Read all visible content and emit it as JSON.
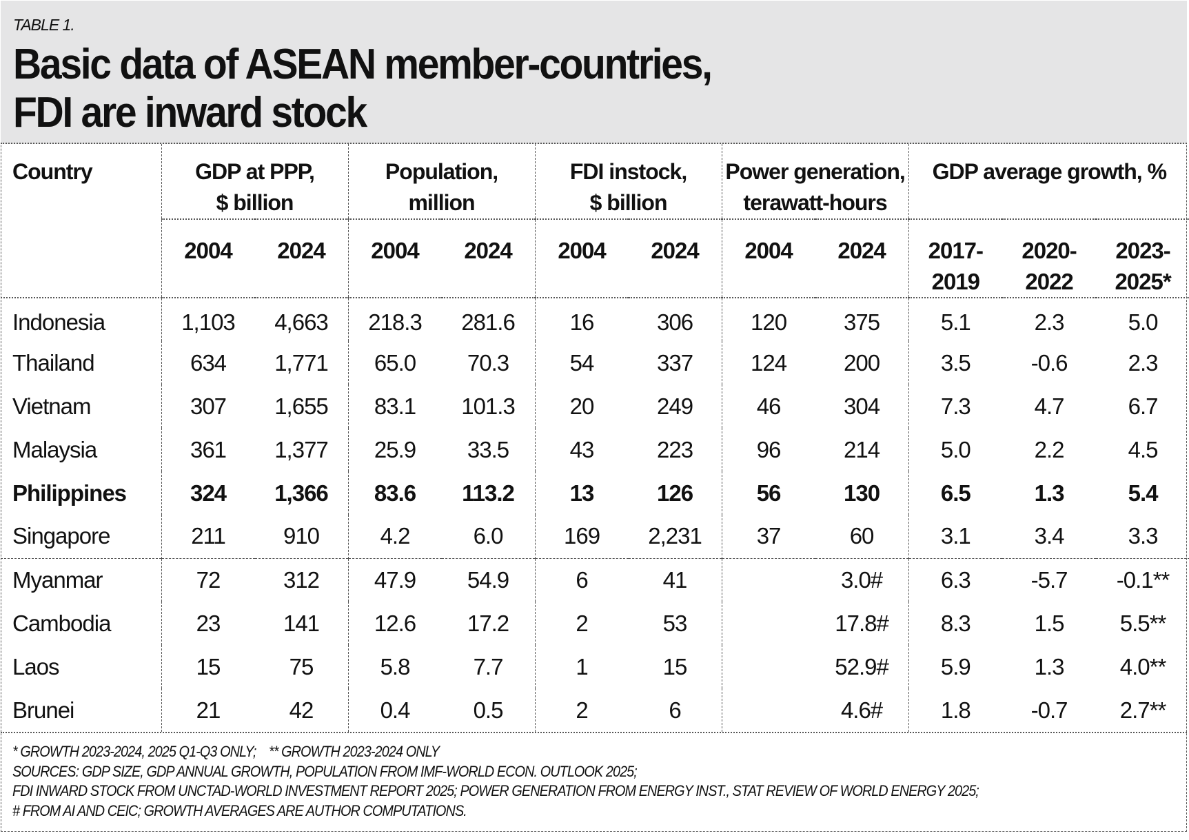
{
  "header": {
    "label": "TABLE 1.",
    "title_line1": "Basic data of ASEAN member-countries,",
    "title_line2": "FDI are inward stock"
  },
  "columns": {
    "country": "Country",
    "groups": [
      {
        "line1": "GDP at PPP,",
        "line2": "$ billion",
        "sub": [
          "2004",
          "2024"
        ]
      },
      {
        "line1": "Population,",
        "line2": "million",
        "sub": [
          "2004",
          "2024"
        ]
      },
      {
        "line1": "FDI instock,",
        "line2": "$ billion",
        "sub": [
          "2004",
          "2024"
        ]
      },
      {
        "line1": "Power generation,",
        "line2": "terawatt-hours",
        "sub": [
          "2004",
          "2024"
        ]
      },
      {
        "line1": "GDP average growth, %",
        "line2": "",
        "sub": [
          "2017-\n2019",
          "2020-\n2022",
          "2023-\n2025*"
        ]
      }
    ]
  },
  "rows": [
    {
      "country": "Indonesia",
      "bold": false,
      "values": [
        "1,103",
        "4,663",
        "218.3",
        "281.6",
        "16",
        "306",
        "120",
        "375",
        "5.1",
        "2.3",
        "5.0"
      ]
    },
    {
      "country": "Thailand",
      "bold": false,
      "values": [
        "634",
        "1,771",
        "65.0",
        "70.3",
        "54",
        "337",
        "124",
        "200",
        "3.5",
        "-0.6",
        "2.3"
      ]
    },
    {
      "country": "Vietnam",
      "bold": false,
      "values": [
        "307",
        "1,655",
        "83.1",
        "101.3",
        "20",
        "249",
        "46",
        "304",
        "7.3",
        "4.7",
        "6.7"
      ]
    },
    {
      "country": "Malaysia",
      "bold": false,
      "values": [
        "361",
        "1,377",
        "25.9",
        "33.5",
        "43",
        "223",
        "96",
        "214",
        "5.0",
        "2.2",
        "4.5"
      ]
    },
    {
      "country": "Philippines",
      "bold": true,
      "values": [
        "324",
        "1,366",
        "83.6",
        "113.2",
        "13",
        "126",
        "56",
        "130",
        "6.5",
        "1.3",
        "5.4"
      ]
    },
    {
      "country": "Singapore",
      "bold": false,
      "values": [
        "211",
        "910",
        "4.2",
        "6.0",
        "169",
        "2,231",
        "37",
        "60",
        "3.1",
        "3.4",
        "3.3"
      ]
    },
    {
      "country": "Myanmar",
      "bold": false,
      "divider": true,
      "values": [
        "72",
        "312",
        "47.9",
        "54.9",
        "6",
        "41",
        "",
        "3.0#",
        "6.3",
        "-5.7",
        "-0.1**"
      ]
    },
    {
      "country": "Cambodia",
      "bold": false,
      "values": [
        "23",
        "141",
        "12.6",
        "17.2",
        "2",
        "53",
        "",
        "17.8#",
        "8.3",
        "1.5",
        "5.5**"
      ]
    },
    {
      "country": "Laos",
      "bold": false,
      "values": [
        "15",
        "75",
        "5.8",
        "7.7",
        "1",
        "15",
        "",
        "52.9#",
        "5.9",
        "1.3",
        "4.0**"
      ]
    },
    {
      "country": "Brunei",
      "bold": false,
      "values": [
        "21",
        "42",
        "0.4",
        "0.5",
        "2",
        "6",
        "",
        "4.6#",
        "1.8",
        "-0.7",
        "2.7**"
      ]
    }
  ],
  "footnotes": [
    "* GROWTH 2023-2024, 2025 Q1-Q3 ONLY;    ** GROWTH 2023-2024 ONLY",
    "SOURCES: GDP SIZE, GDP ANNUAL GROWTH, POPULATION FROM IMF-WORLD ECON. OUTLOOK 2025;",
    "FDI INWARD STOCK FROM UNCTAD-WORLD INVESTMENT REPORT 2025; POWER GENERATION FROM ENERGY INST., STAT REVIEW OF WORLD ENERGY 2025;",
    "# FROM AI AND CEIC; GROWTH AVERAGES ARE AUTHOR COMPUTATIONS."
  ]
}
